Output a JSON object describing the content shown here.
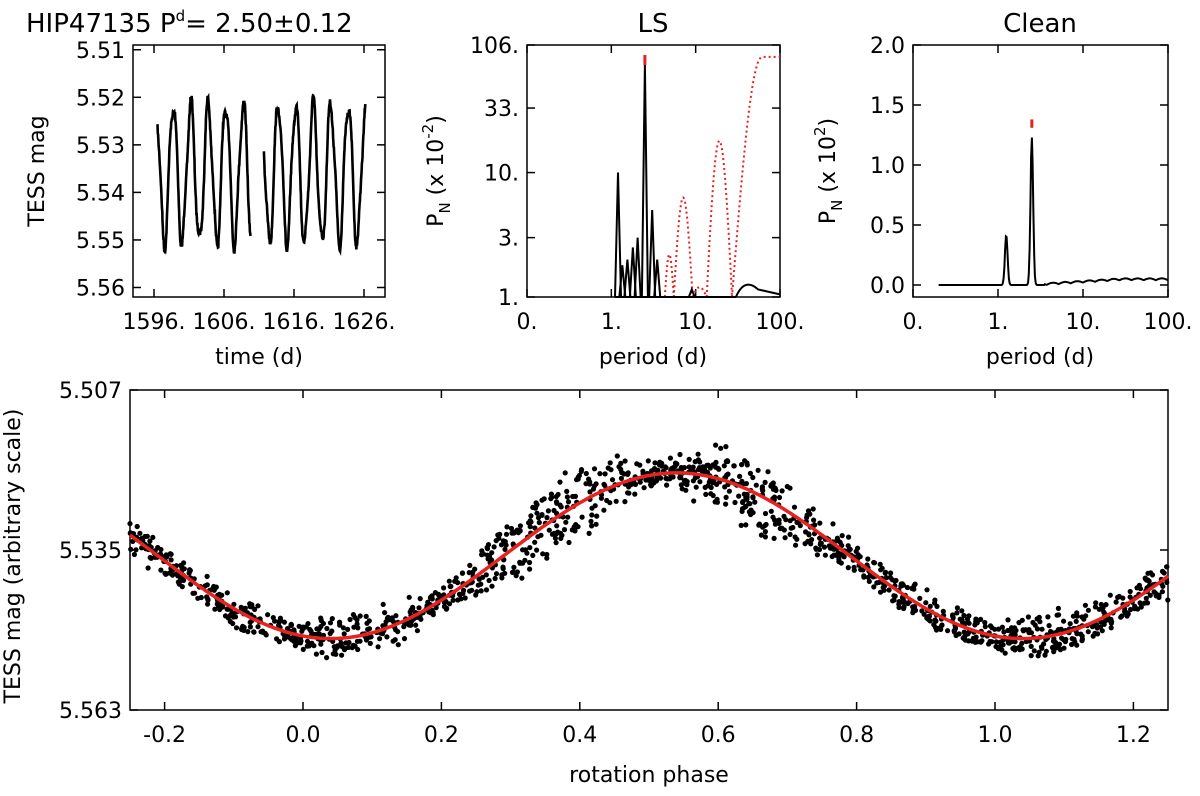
{
  "figure": {
    "star": "HIP47135",
    "period_symbol": "P",
    "period_superscript": "d",
    "period_equals": "=",
    "period_value": "2.50±0.12"
  },
  "colors": {
    "data": "#000000",
    "fit": "#e8221f",
    "window": "#e8221f"
  },
  "chart_data": [
    {
      "id": "lightcurve",
      "type": "line",
      "xlabel": "time (d)",
      "ylabel": "TESS mag",
      "xlim": [
        1593,
        1629
      ],
      "ylim": [
        5.562,
        5.509
      ],
      "xticks": [
        1596,
        1606,
        1616,
        1626
      ],
      "xtick_labels": [
        "1596.",
        "1606.",
        "1616.",
        "1626."
      ],
      "yticks": [
        5.51,
        5.52,
        5.53,
        5.54,
        5.55,
        5.56
      ],
      "ytick_labels": [
        "5.51",
        "5.52",
        "5.53",
        "5.54",
        "5.55",
        "5.56"
      ],
      "segments": [
        {
          "t0": 1596.5,
          "t1": 1609.8
        },
        {
          "t0": 1611.7,
          "t1": 1626.2
        }
      ],
      "model": {
        "mean": 5.536,
        "amplitude": 0.0145,
        "period": 2.5,
        "t_min": 1597.5
      }
    },
    {
      "id": "ls",
      "type": "line",
      "title": "LS",
      "xlabel": "period (d)",
      "ylabel": "P",
      "ylabel_sub": "N",
      "ylabel_unit": "(x 10",
      "ylabel_exp": "-2",
      "ylabel_close": ")",
      "x_scale": "log",
      "y_scale": "log",
      "xlim": [
        0.1,
        100
      ],
      "ylim": [
        1,
        106
      ],
      "xticks": [
        0.1,
        1,
        10,
        100
      ],
      "xtick_labels": [
        "0.",
        "1.",
        "10.",
        "100."
      ],
      "yticks": [
        1,
        3,
        10,
        33,
        106
      ],
      "ytick_labels": [
        "1.",
        "3.",
        "10.",
        "33.",
        "106."
      ],
      "marker_period": 2.5,
      "periodogram_peaks": [
        {
          "period": 1.2,
          "power": 10
        },
        {
          "period": 1.35,
          "power": 1.8
        },
        {
          "period": 1.55,
          "power": 2.0
        },
        {
          "period": 1.8,
          "power": 2.5
        },
        {
          "period": 2.05,
          "power": 3.0
        },
        {
          "period": 2.5,
          "power": 75
        },
        {
          "period": 3.05,
          "power": 5.0
        },
        {
          "period": 3.5,
          "power": 2.0
        },
        {
          "period": 9.0,
          "power": 1.15
        }
      ],
      "periodogram_tail": {
        "period_start": 30,
        "period_peak": 38,
        "power_peak": 1.3,
        "power_end": 1.05
      },
      "window_function": [
        {
          "period_lo": 4.3,
          "period_hi": 5.5,
          "power": 2.2
        },
        {
          "period_lo": 5.5,
          "period_hi": 9.2,
          "power": 6.3
        },
        {
          "period_lo": 9.2,
          "period_hi": 13.5,
          "power": 1.2
        },
        {
          "period_lo": 13.5,
          "period_hi": 27,
          "power": 18
        },
        {
          "period_lo": 27,
          "period_hi": 100,
          "power": 85
        }
      ]
    },
    {
      "id": "clean",
      "type": "line",
      "title": "Clean",
      "xlabel": "period (d)",
      "ylabel": "P",
      "ylabel_sub": "N",
      "ylabel_unit": "(x 10",
      "ylabel_exp": "2",
      "ylabel_close": ")",
      "x_scale": "log",
      "xlim": [
        0.1,
        100
      ],
      "ylim": [
        -0.1,
        2.0
      ],
      "xticks": [
        0.1,
        1,
        10,
        100
      ],
      "xtick_labels": [
        "0.",
        "1.",
        "10.",
        "100."
      ],
      "yticks": [
        0.0,
        0.5,
        1.0,
        1.5,
        2.0
      ],
      "ytick_labels": [
        "0.0",
        "0.5",
        "1.0",
        "1.5",
        "2.0"
      ],
      "marker_period": 2.5,
      "peaks": [
        {
          "period": 1.25,
          "power": 0.42
        },
        {
          "period": 2.5,
          "power": 1.23
        }
      ],
      "tail_power": 0.04
    },
    {
      "id": "phase",
      "type": "scatter",
      "xlabel": "rotation phase",
      "ylabel": "TESS mag (arbitrary scale)",
      "xlim": [
        -0.25,
        1.25
      ],
      "ylim": [
        5.563,
        5.507
      ],
      "xticks": [
        -0.2,
        0.0,
        0.2,
        0.4,
        0.6,
        0.8,
        1.0,
        1.2
      ],
      "xtick_labels": [
        "-0.2",
        "0.0",
        "0.2",
        "0.4",
        "0.6",
        "0.8",
        "1.0",
        "1.2"
      ],
      "yticks": [
        5.507,
        5.535,
        5.563
      ],
      "ytick_labels": [
        "5.507",
        "5.535",
        "5.563"
      ],
      "fit": {
        "mean": 5.536,
        "amplitude": 0.0145,
        "phase_min": 0.04,
        "period_phase": 1.0
      },
      "scatter_halfwidth": 0.0045
    }
  ]
}
